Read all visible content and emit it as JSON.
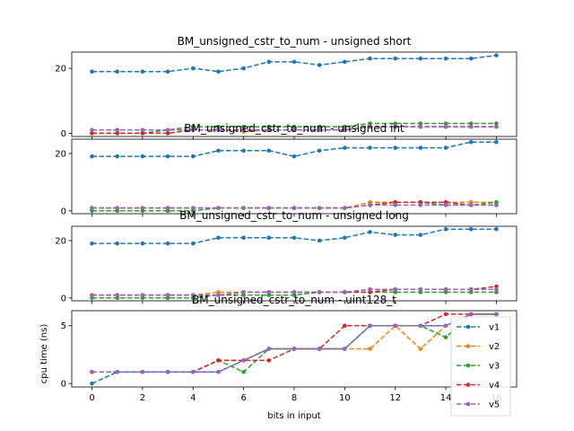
{
  "figure": {
    "xlabel": "bits in input",
    "ylabel": "cpu time (ns)"
  },
  "chart_data": [
    {
      "type": "line",
      "title": "BM_unsigned_cstr_to_num - unsigned short",
      "x": [
        0,
        1,
        2,
        3,
        4,
        5,
        6,
        7,
        8,
        9,
        10,
        11,
        12,
        13,
        14,
        15,
        16
      ],
      "xticks": [],
      "ylim": [
        -1,
        25
      ],
      "yticks": [
        0,
        20
      ],
      "series": [
        {
          "name": "v1",
          "color": "#1f77b4",
          "values": [
            19,
            19,
            19,
            19,
            20,
            19,
            20,
            22,
            22,
            21,
            22,
            23,
            23,
            23,
            23,
            23,
            24
          ]
        },
        {
          "name": "v2",
          "color": "#ff7f0e",
          "values": [
            1,
            1,
            1,
            1,
            1,
            1,
            0.5,
            1,
            1,
            1,
            1,
            2,
            2,
            2,
            2,
            2,
            2
          ]
        },
        {
          "name": "v3",
          "color": "#2ca02c",
          "values": [
            0,
            0,
            0,
            1,
            2,
            2,
            2,
            2,
            2,
            2,
            2,
            3,
            3,
            3,
            3,
            3,
            3
          ]
        },
        {
          "name": "v4",
          "color": "#d62728",
          "values": [
            0,
            0,
            0,
            0,
            1,
            1,
            1,
            1,
            1,
            1,
            1,
            2,
            2,
            2,
            2,
            2,
            2
          ]
        },
        {
          "name": "v5",
          "color": "#9467bd",
          "values": [
            1,
            1,
            1,
            1,
            1,
            1,
            1,
            1,
            1,
            1,
            1,
            2,
            2,
            2,
            2,
            2,
            2
          ]
        }
      ]
    },
    {
      "type": "line",
      "title": "BM_unsigned_cstr_to_num - unsigned int",
      "x": [
        0,
        1,
        2,
        3,
        4,
        5,
        6,
        7,
        8,
        9,
        10,
        11,
        12,
        13,
        14,
        15,
        16
      ],
      "xticks": [],
      "ylim": [
        -1,
        25
      ],
      "yticks": [
        0,
        20
      ],
      "series": [
        {
          "name": "v1",
          "color": "#1f77b4",
          "values": [
            19,
            19,
            19,
            19,
            19,
            21,
            21,
            21,
            19,
            21,
            22,
            22,
            22,
            22,
            22,
            24,
            24
          ]
        },
        {
          "name": "v2",
          "color": "#ff7f0e",
          "values": [
            1,
            1,
            1,
            1,
            1,
            1,
            1,
            1,
            1,
            1,
            1,
            3,
            3,
            3,
            3,
            3,
            3
          ]
        },
        {
          "name": "v3",
          "color": "#2ca02c",
          "values": [
            0,
            0,
            0,
            0,
            0,
            1,
            1,
            1,
            1,
            1,
            1,
            2,
            3,
            3,
            2,
            2,
            3
          ]
        },
        {
          "name": "v4",
          "color": "#d62728",
          "values": [
            1,
            1,
            1,
            1,
            1,
            1,
            1,
            1,
            1,
            1,
            1,
            2,
            3,
            3,
            3,
            2,
            2
          ]
        },
        {
          "name": "v5",
          "color": "#9467bd",
          "values": [
            1,
            1,
            1,
            1,
            1,
            1,
            1,
            1,
            1,
            1,
            1,
            2,
            2,
            2,
            2,
            2,
            2
          ]
        }
      ]
    },
    {
      "type": "line",
      "title": "BM_unsigned_cstr_to_num - unsigned long",
      "x": [
        0,
        1,
        2,
        3,
        4,
        5,
        6,
        7,
        8,
        9,
        10,
        11,
        12,
        13,
        14,
        15,
        16
      ],
      "xticks": [],
      "ylim": [
        -1,
        25
      ],
      "yticks": [
        0,
        20
      ],
      "series": [
        {
          "name": "v1",
          "color": "#1f77b4",
          "values": [
            19,
            19,
            19,
            19,
            19,
            21,
            21,
            21,
            21,
            20,
            21,
            23,
            22,
            22,
            24,
            24,
            24
          ]
        },
        {
          "name": "v2",
          "color": "#ff7f0e",
          "values": [
            1,
            1,
            1,
            1,
            1,
            2,
            2,
            2,
            2,
            2,
            2,
            2,
            3,
            3,
            3,
            3,
            3
          ]
        },
        {
          "name": "v3",
          "color": "#2ca02c",
          "values": [
            0,
            0,
            0,
            0,
            0,
            1,
            1,
            1,
            1,
            2,
            2,
            2,
            2,
            2,
            2,
            2,
            2
          ]
        },
        {
          "name": "v4",
          "color": "#d62728",
          "values": [
            1,
            1,
            1,
            1,
            1,
            1,
            2,
            2,
            2,
            2,
            2,
            2,
            3,
            3,
            3,
            3,
            4
          ]
        },
        {
          "name": "v5",
          "color": "#9467bd",
          "values": [
            1,
            1,
            1,
            1,
            1,
            1,
            2,
            2,
            2,
            2,
            2,
            3,
            3,
            3,
            3,
            3,
            3
          ]
        }
      ]
    },
    {
      "type": "line",
      "title": "BM_unsigned_cstr_to_num - uint128_t",
      "x": [
        0,
        1,
        2,
        3,
        4,
        5,
        6,
        7,
        8,
        9,
        10,
        11,
        12,
        13,
        14,
        15,
        16
      ],
      "xticks": [
        0,
        2,
        4,
        6,
        8,
        10,
        12,
        14,
        16
      ],
      "ylim": [
        -0.3,
        6.3
      ],
      "yticks": [
        0,
        5
      ],
      "series": [
        {
          "name": "v1",
          "color": "#1f77b4",
          "values": [
            0,
            1,
            1,
            1,
            1,
            1,
            2,
            3,
            3,
            3,
            3,
            5,
            5,
            5,
            5,
            6,
            6
          ]
        },
        {
          "name": "v2",
          "color": "#ff7f0e",
          "values": [
            1,
            1,
            1,
            1,
            1,
            2,
            2,
            3,
            3,
            3,
            3,
            3,
            5,
            3,
            5,
            6,
            6
          ]
        },
        {
          "name": "v3",
          "color": "#2ca02c",
          "values": [
            1,
            1,
            1,
            1,
            1,
            2,
            1,
            3,
            3,
            3,
            3,
            5,
            5,
            5,
            4,
            6,
            6
          ]
        },
        {
          "name": "v4",
          "color": "#d62728",
          "values": [
            1,
            1,
            1,
            1,
            1,
            2,
            2,
            2,
            3,
            3,
            5,
            5,
            5,
            5,
            6,
            6,
            6
          ]
        },
        {
          "name": "v5",
          "color": "#9467bd",
          "values": [
            1,
            1,
            1,
            1,
            1,
            1,
            2,
            3,
            3,
            3,
            3,
            5,
            5,
            5,
            5,
            6,
            6
          ]
        }
      ]
    }
  ],
  "legend": {
    "placement": "bottom-right",
    "items": [
      {
        "label": "v1",
        "color": "#1f77b4"
      },
      {
        "label": "v2",
        "color": "#ff7f0e"
      },
      {
        "label": "v3",
        "color": "#2ca02c"
      },
      {
        "label": "v4",
        "color": "#d62728"
      },
      {
        "label": "v5",
        "color": "#9467bd"
      }
    ]
  }
}
